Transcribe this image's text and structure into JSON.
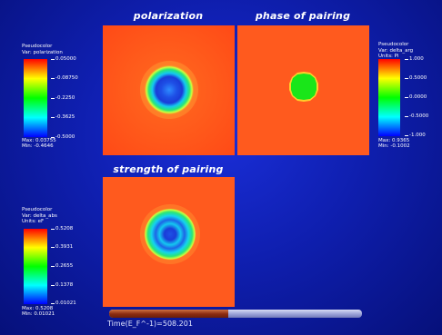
{
  "panels": {
    "polarization": {
      "title": "polarization"
    },
    "phase": {
      "title": "phase of pairing"
    },
    "strength": {
      "title": "strength of pairing"
    }
  },
  "legends": {
    "polarization": {
      "header": [
        "Pseudocolor",
        "Var: polarization"
      ],
      "ticks": [
        "0.05000",
        "-0.08750",
        "-0.2250",
        "-0.3625",
        "-0.5000"
      ],
      "max": "Max: 0.03755",
      "min": "Min: -0.4646"
    },
    "phase": {
      "header": [
        "Pseudocolor",
        "Var: delta_arg",
        "Units: Pi"
      ],
      "ticks": [
        "1.000",
        "0.5000",
        "0.0000",
        "-0.5000",
        "-1.000"
      ],
      "max": "Max: 0.9365",
      "min": "Min: -0.1002"
    },
    "strength": {
      "header": [
        "Pseudocolor",
        "Var: delta_abs",
        "Units: eF"
      ],
      "ticks": [
        "0.5208",
        "0.3931",
        "0.2655",
        "0.1378",
        "0.01021"
      ],
      "max": "Max: 0.5208",
      "min": "Min: 0.01021"
    }
  },
  "time": {
    "label": "Time(E_F^-1)=508.201",
    "progress": 0.47
  },
  "colors": {
    "background": "#0f1fb0",
    "panel_base": "#ff5a1e",
    "ring_green": "#19e619",
    "ring_cyan": "#14d2f0",
    "ring_blue": "#1e64e6"
  }
}
